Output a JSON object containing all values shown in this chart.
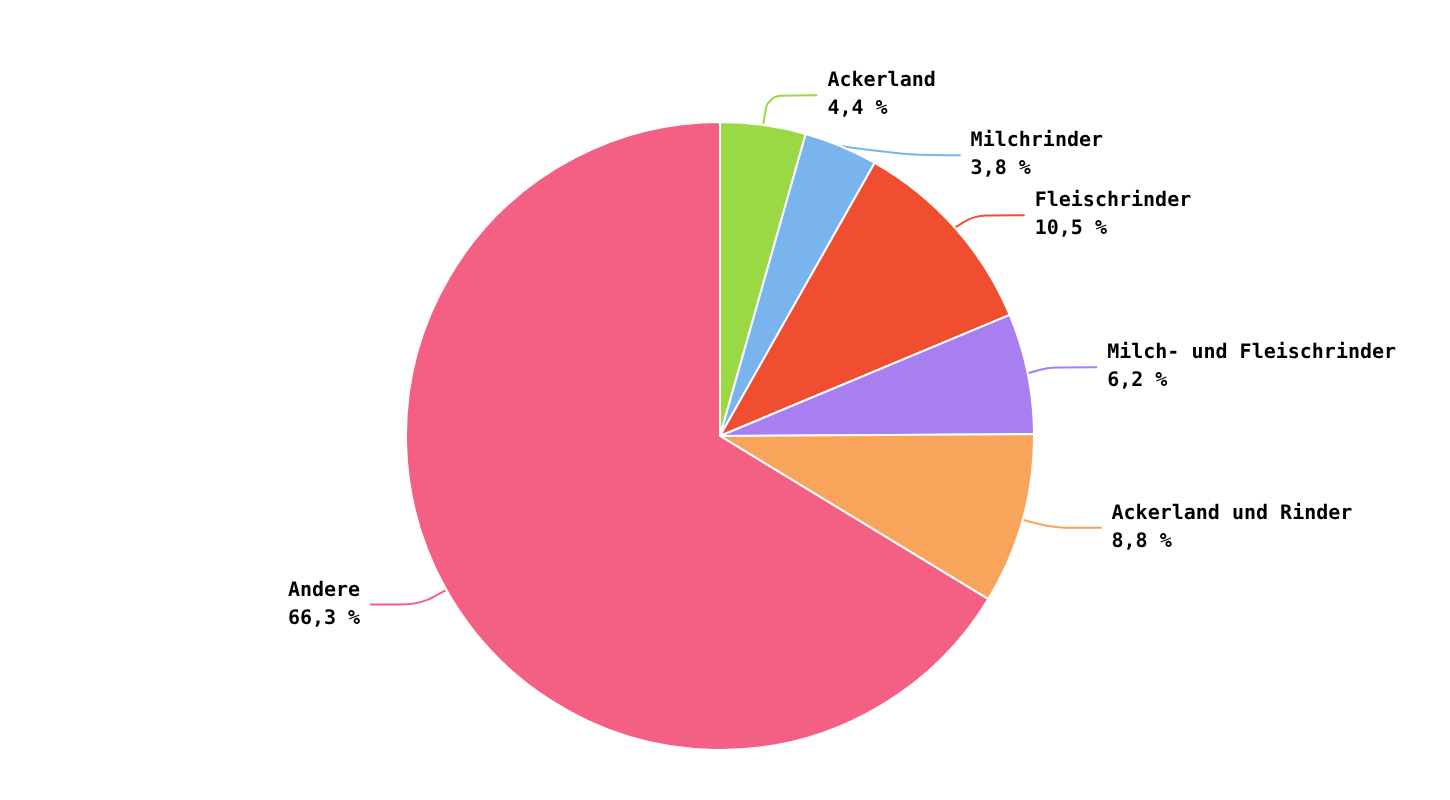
{
  "chart_data": {
    "type": "pie",
    "categories": [
      "Ackerland",
      "Milchrinder",
      "Fleischrinder",
      "Milch- und Fleischrinder",
      "Ackerland und Rinder",
      "Andere"
    ],
    "values": [
      4.4,
      3.8,
      10.5,
      6.2,
      8.8,
      66.3
    ],
    "value_labels": [
      "4,4 %",
      "3,8 %",
      "10,5 %",
      "6,2 %",
      "8,8 %",
      "66,3 %"
    ],
    "colors": [
      "#9bd944",
      "#7ab4ee",
      "#f04e30",
      "#a77ff0",
      "#f8a45b",
      "#f45f84"
    ],
    "legend": false
  }
}
